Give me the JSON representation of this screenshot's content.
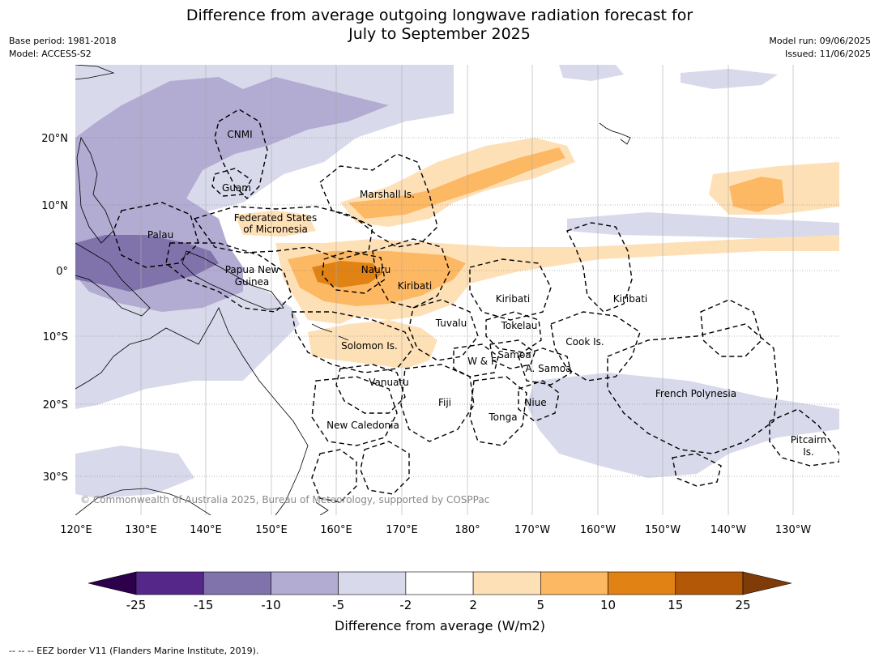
{
  "title_line1": "Difference from average outgoing longwave radiation forecast for",
  "title_line2": "July to September 2025",
  "meta_left": [
    "Base period: 1981-2018",
    "Model: ACCESS-S2"
  ],
  "meta_right": [
    "Model run: 09/06/2025",
    "Issued: 11/06/2025"
  ],
  "lon_ticks": [
    "120°E",
    "130°E",
    "140°E",
    "150°E",
    "160°E",
    "170°E",
    "180°",
    "170°W",
    "160°W",
    "150°W",
    "140°W",
    "130°W"
  ],
  "lat_ticks": [
    "20°N",
    "10°N",
    "0°",
    "10°S",
    "20°S",
    "30°S"
  ],
  "places": [
    {
      "name": "CNMI"
    },
    {
      "name": "Guam"
    },
    {
      "name": "Marshall Is."
    },
    {
      "name": "Federated States"
    },
    {
      "name": "of Micronesia"
    },
    {
      "name": "Palau"
    },
    {
      "name": "Papua New"
    },
    {
      "name": "Guinea"
    },
    {
      "name": "Nauru"
    },
    {
      "name": "Kiribati"
    },
    {
      "name": "Kiribati"
    },
    {
      "name": "Kiribati"
    },
    {
      "name": "Tuvalu"
    },
    {
      "name": "Tokelau"
    },
    {
      "name": "Solomon Is."
    },
    {
      "name": "Cook Is."
    },
    {
      "name": "Samoa"
    },
    {
      "name": "W & F"
    },
    {
      "name": "A. Samoa"
    },
    {
      "name": "Vanuatu"
    },
    {
      "name": "Fiji"
    },
    {
      "name": "Niue"
    },
    {
      "name": "Tonga"
    },
    {
      "name": "French Polynesia"
    },
    {
      "name": "New Caledonia"
    },
    {
      "name": "Pitcairn"
    },
    {
      "name": "Is."
    }
  ],
  "copyright": "© Commonwealth of Australia 2025, Bureau of Meteorology, supported by COSPPac",
  "colorbar": {
    "label": "Difference from average (W/m2)",
    "ticks": [
      "-25",
      "-15",
      "-10",
      "-5",
      "-2",
      "2",
      "5",
      "10",
      "15",
      "25"
    ],
    "colors": [
      "#2d004b",
      "#542788",
      "#8073ac",
      "#b2abd2",
      "#d8daeb",
      "#ffffff",
      "#fee0b6",
      "#fdb863",
      "#e08214",
      "#b35806",
      "#7f3b08"
    ]
  },
  "colors": {
    "purple_light": "#d8daeb",
    "purple_mid": "#b2abd2",
    "purple_dark": "#8073ac",
    "orange_light": "#fee0b6",
    "orange_mid": "#fdb863",
    "orange_dark": "#e08214"
  },
  "footer": "--  --  -- EEZ border V11 (Flanders Marine Institute, 2019)."
}
